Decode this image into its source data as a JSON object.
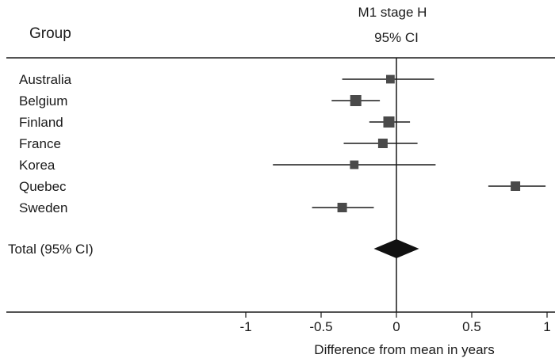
{
  "chart_data": {
    "type": "forest",
    "column_header": "Group",
    "title": "M1 stage H",
    "subtitle": "95% CI",
    "xlabel": "Difference from mean in years",
    "xlim": [
      -1,
      1
    ],
    "xticks": [
      -1,
      -0.5,
      0,
      0.5,
      1
    ],
    "xtick_labels": [
      "-1",
      "-0.5",
      "0",
      "0.5",
      "1"
    ],
    "rows": [
      {
        "label": "Australia",
        "estimate": -0.04,
        "ci_low": -0.36,
        "ci_high": 0.25,
        "weight": 0.6
      },
      {
        "label": "Belgium",
        "estimate": -0.27,
        "ci_low": -0.43,
        "ci_high": -0.11,
        "weight": 1.0
      },
      {
        "label": "Finland",
        "estimate": -0.05,
        "ci_low": -0.18,
        "ci_high": 0.09,
        "weight": 1.0
      },
      {
        "label": "France",
        "estimate": -0.09,
        "ci_low": -0.35,
        "ci_high": 0.14,
        "weight": 0.75
      },
      {
        "label": "Korea",
        "estimate": -0.28,
        "ci_low": -0.82,
        "ci_high": 0.26,
        "weight": 0.6
      },
      {
        "label": "Quebec",
        "estimate": 0.79,
        "ci_low": 0.61,
        "ci_high": 0.99,
        "weight": 0.75
      },
      {
        "label": "Sweden",
        "estimate": -0.36,
        "ci_low": -0.56,
        "ci_high": -0.15,
        "weight": 0.75
      }
    ],
    "total": {
      "label": "Total (95% CI)",
      "estimate": 0.0,
      "ci_low": -0.15,
      "ci_high": 0.15
    },
    "colors": {
      "ink": "#1a1a1a",
      "marker": "#4a4a4a",
      "diamond": "#111111"
    }
  }
}
